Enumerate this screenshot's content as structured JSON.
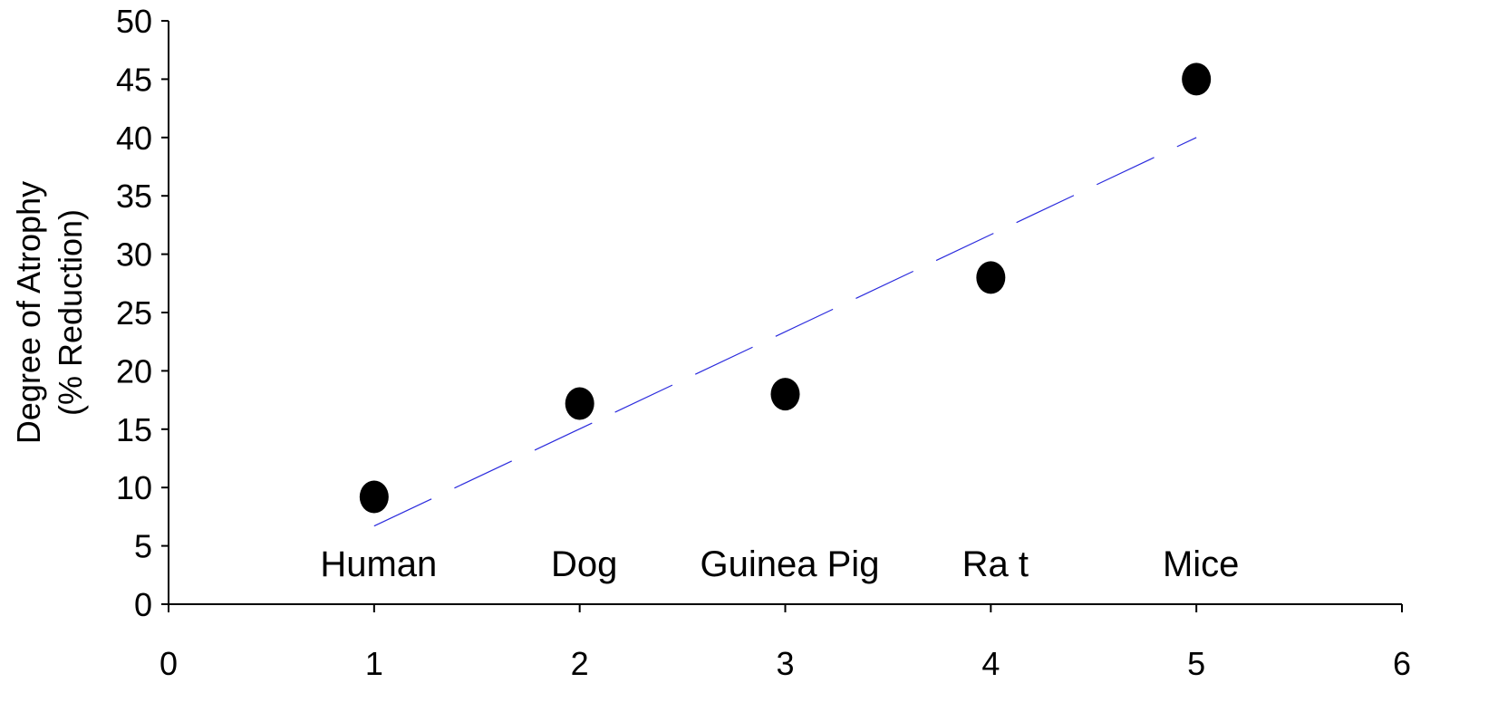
{
  "chart_data": {
    "type": "scatter",
    "title": "",
    "ylabel": [
      "Degree of Atrophy",
      "(% Reduction)"
    ],
    "xlabel": "",
    "xlim": [
      0,
      6
    ],
    "ylim": [
      0,
      50
    ],
    "x_ticks": [
      0,
      1,
      2,
      3,
      4,
      5,
      6
    ],
    "y_ticks": [
      0,
      5,
      10,
      15,
      20,
      25,
      30,
      35,
      40,
      45,
      50
    ],
    "grid": false,
    "legend": "none",
    "points": [
      {
        "label": "Human",
        "x": 1,
        "y": 9.2
      },
      {
        "label": "Dog",
        "x": 2,
        "y": 17.2
      },
      {
        "label": "Guinea Pig",
        "x": 3,
        "y": 18.0
      },
      {
        "label": "Ra t",
        "x": 4,
        "y": 28.0
      },
      {
        "label": "Mice",
        "x": 5,
        "y": 45.0
      }
    ],
    "trendline": {
      "style": "dashed",
      "color": "#2B2BDD",
      "from": {
        "x": 1,
        "y": 6.7
      },
      "to": {
        "x": 5,
        "y": 40.0
      }
    },
    "colors": {
      "marker": "#000000",
      "axis": "#000000",
      "trendline": "#2B2BDD"
    }
  }
}
